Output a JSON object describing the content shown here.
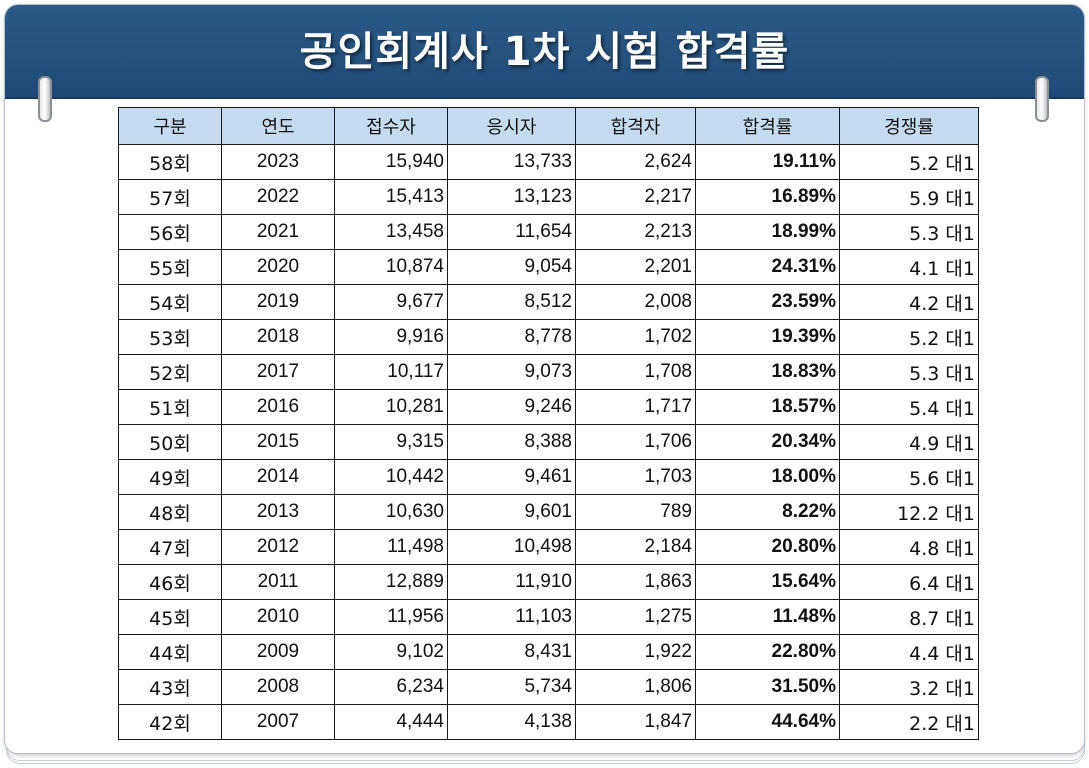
{
  "title": "공인회계사 1차 시험 합격률",
  "colors": {
    "header_bg": "#1f4a76",
    "table_header_bg": "#c5dcf0",
    "rate_text": "#1f6fb8"
  },
  "table": {
    "headers": [
      "구분",
      "연도",
      "접수자",
      "응시자",
      "합격자",
      "합격률",
      "경쟁률"
    ],
    "rows": [
      [
        "58회",
        "2023",
        "15,940",
        "13,733",
        "2,624",
        "19.11%",
        "5.2 대1"
      ],
      [
        "57회",
        "2022",
        "15,413",
        "13,123",
        "2,217",
        "16.89%",
        "5.9 대1"
      ],
      [
        "56회",
        "2021",
        "13,458",
        "11,654",
        "2,213",
        "18.99%",
        "5.3 대1"
      ],
      [
        "55회",
        "2020",
        "10,874",
        "9,054",
        "2,201",
        "24.31%",
        "4.1 대1"
      ],
      [
        "54회",
        "2019",
        "9,677",
        "8,512",
        "2,008",
        "23.59%",
        "4.2 대1"
      ],
      [
        "53회",
        "2018",
        "9,916",
        "8,778",
        "1,702",
        "19.39%",
        "5.2 대1"
      ],
      [
        "52회",
        "2017",
        "10,117",
        "9,073",
        "1,708",
        "18.83%",
        "5.3 대1"
      ],
      [
        "51회",
        "2016",
        "10,281",
        "9,246",
        "1,717",
        "18.57%",
        "5.4 대1"
      ],
      [
        "50회",
        "2015",
        "9,315",
        "8,388",
        "1,706",
        "20.34%",
        "4.9 대1"
      ],
      [
        "49회",
        "2014",
        "10,442",
        "9,461",
        "1,703",
        "18.00%",
        "5.6 대1"
      ],
      [
        "48회",
        "2013",
        "10,630",
        "9,601",
        "789",
        "8.22%",
        "12.2 대1"
      ],
      [
        "47회",
        "2012",
        "11,498",
        "10,498",
        "2,184",
        "20.80%",
        "4.8 대1"
      ],
      [
        "46회",
        "2011",
        "12,889",
        "11,910",
        "1,863",
        "15.64%",
        "6.4 대1"
      ],
      [
        "45회",
        "2010",
        "11,956",
        "11,103",
        "1,275",
        "11.48%",
        "8.7 대1"
      ],
      [
        "44회",
        "2009",
        "9,102",
        "8,431",
        "1,922",
        "22.80%",
        "4.4 대1"
      ],
      [
        "43회",
        "2008",
        "6,234",
        "5,734",
        "1,806",
        "31.50%",
        "3.2 대1"
      ],
      [
        "42회",
        "2007",
        "4,444",
        "4,138",
        "1,847",
        "44.64%",
        "2.2 대1"
      ]
    ]
  }
}
